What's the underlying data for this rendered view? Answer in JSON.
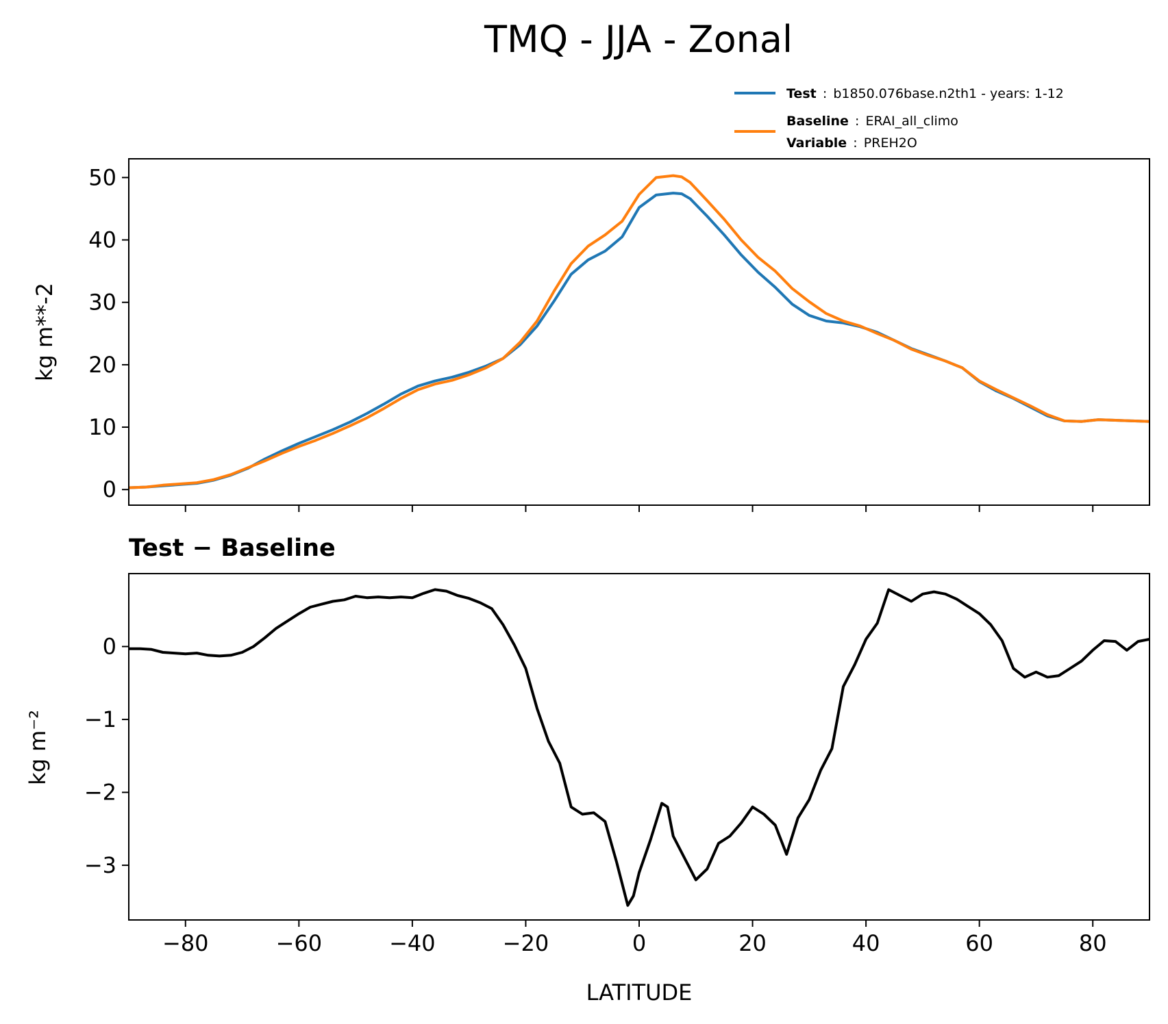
{
  "title": "TMQ - JJA - Zonal",
  "legend": {
    "test_label": "Test",
    "test_text": "b1850.076base.n2th1 - years: 1-12",
    "baseline_label": "Baseline",
    "baseline_text": "ERAI_all_climo",
    "variable_label": "Variable",
    "variable_text": "PREH2O",
    "colon": ":"
  },
  "colors": {
    "test": "#1f77b4",
    "baseline": "#ff7f0e",
    "diff": "#000000"
  },
  "chart_data": [
    {
      "type": "line",
      "title": "",
      "xlabel": "",
      "ylabel": "kg m**-2",
      "xlim": [
        -90,
        90
      ],
      "ylim": [
        -2.5,
        53
      ],
      "yticks": [
        0,
        10,
        20,
        30,
        40,
        50
      ],
      "ytick_labels": [
        "0",
        "10",
        "20",
        "30",
        "40",
        "50"
      ],
      "legend_position": "above-right",
      "series": [
        {
          "name": "Test",
          "color": "#1f77b4",
          "x": [
            -90,
            -87,
            -84,
            -81,
            -78,
            -75,
            -72,
            -69,
            -66,
            -63,
            -60,
            -57,
            -54,
            -51,
            -48,
            -45,
            -42,
            -39,
            -36,
            -33,
            -30,
            -27,
            -24,
            -21,
            -18,
            -15,
            -12,
            -9,
            -6,
            -3,
            0,
            3,
            6,
            7.5,
            9,
            12,
            15,
            18,
            21,
            24,
            27,
            30,
            33,
            36,
            39,
            42,
            45,
            48,
            51,
            54,
            57,
            60,
            63,
            66,
            69,
            72,
            75,
            78,
            81,
            84,
            87,
            90
          ],
          "y": [
            0.3,
            0.4,
            0.6,
            0.8,
            1.0,
            1.5,
            2.3,
            3.4,
            4.9,
            6.2,
            7.4,
            8.5,
            9.6,
            10.8,
            12.2,
            13.7,
            15.3,
            16.6,
            17.4,
            18.0,
            18.8,
            19.8,
            21.0,
            23.2,
            26.2,
            30.2,
            34.5,
            36.8,
            38.2,
            40.5,
            45.2,
            47.2,
            47.5,
            47.4,
            46.6,
            43.8,
            40.8,
            37.6,
            34.8,
            32.4,
            29.7,
            27.9,
            27.0,
            26.7,
            26.1,
            25.2,
            23.9,
            22.6,
            21.6,
            20.6,
            19.5,
            17.3,
            15.8,
            14.6,
            13.2,
            11.8,
            11.0,
            10.9,
            11.2,
            11.1,
            11.0,
            10.9
          ]
        },
        {
          "name": "Baseline",
          "color": "#ff7f0e",
          "x": [
            -90,
            -87,
            -84,
            -81,
            -78,
            -75,
            -72,
            -69,
            -66,
            -63,
            -60,
            -57,
            -54,
            -51,
            -48,
            -45,
            -42,
            -39,
            -36,
            -33,
            -30,
            -27,
            -24,
            -21,
            -18,
            -15,
            -12,
            -9,
            -6,
            -3,
            0,
            3,
            6,
            7.5,
            9,
            12,
            15,
            18,
            21,
            24,
            27,
            30,
            33,
            36,
            39,
            42,
            45,
            48,
            51,
            54,
            57,
            60,
            63,
            66,
            69,
            72,
            75,
            78,
            81,
            84,
            87,
            90
          ],
          "y": [
            0.3,
            0.4,
            0.7,
            0.9,
            1.1,
            1.6,
            2.4,
            3.5,
            4.6,
            5.8,
            6.9,
            7.9,
            9.0,
            10.2,
            11.5,
            13.0,
            14.6,
            16.0,
            16.9,
            17.5,
            18.4,
            19.5,
            21.0,
            23.6,
            27.0,
            31.8,
            36.2,
            39.0,
            40.8,
            43.0,
            47.3,
            50.0,
            50.3,
            50.1,
            49.2,
            46.3,
            43.3,
            40.0,
            37.2,
            35.0,
            32.2,
            30.1,
            28.2,
            27.0,
            26.2,
            25.0,
            23.9,
            22.5,
            21.5,
            20.6,
            19.5,
            17.4,
            16.0,
            14.7,
            13.4,
            12.0,
            11.0,
            10.9,
            11.2,
            11.1,
            11.0,
            10.9
          ]
        }
      ]
    },
    {
      "type": "line",
      "title": "Test − Baseline",
      "xlabel": "LATITUDE",
      "ylabel": "kg m⁻²",
      "xlim": [
        -90,
        90
      ],
      "ylim": [
        -3.75,
        1.0
      ],
      "yticks": [
        0,
        -1,
        -2,
        -3
      ],
      "ytick_labels": [
        "0",
        "−1",
        "−2",
        "−3"
      ],
      "xticks": [
        -80,
        -60,
        -40,
        -20,
        0,
        20,
        40,
        60,
        80
      ],
      "xtick_labels": [
        "−80",
        "−60",
        "−40",
        "−20",
        "0",
        "20",
        "40",
        "60",
        "80"
      ],
      "series": [
        {
          "name": "Test - Baseline",
          "color": "#000000",
          "x": [
            -90,
            -88,
            -86,
            -84,
            -82,
            -80,
            -78,
            -76,
            -74,
            -72,
            -70,
            -68,
            -66,
            -64,
            -62,
            -60,
            -58,
            -56,
            -54,
            -52,
            -50,
            -48,
            -46,
            -44,
            -42,
            -40,
            -38,
            -36,
            -34,
            -32,
            -30,
            -28,
            -26,
            -24,
            -22,
            -20,
            -18,
            -16,
            -14,
            -12,
            -10,
            -8,
            -6,
            -4,
            -2,
            -1,
            0,
            2,
            4,
            5,
            6,
            8,
            10,
            12,
            14,
            16,
            18,
            20,
            22,
            24,
            26,
            28,
            30,
            32,
            34,
            36,
            38,
            40,
            42,
            44,
            46,
            48,
            50,
            52,
            54,
            56,
            58,
            60,
            62,
            64,
            66,
            68,
            70,
            72,
            74,
            76,
            78,
            80,
            82,
            84,
            86,
            88,
            90
          ],
          "y": [
            -0.03,
            -0.03,
            -0.04,
            -0.08,
            -0.09,
            -0.1,
            -0.09,
            -0.12,
            -0.13,
            -0.12,
            -0.08,
            0.0,
            0.12,
            0.25,
            0.35,
            0.45,
            0.54,
            0.58,
            0.62,
            0.64,
            0.69,
            0.67,
            0.68,
            0.67,
            0.68,
            0.67,
            0.73,
            0.78,
            0.76,
            0.7,
            0.66,
            0.6,
            0.52,
            0.3,
            0.02,
            -0.3,
            -0.85,
            -1.3,
            -1.6,
            -2.2,
            -2.3,
            -2.28,
            -2.4,
            -2.95,
            -3.55,
            -3.42,
            -3.1,
            -2.65,
            -2.15,
            -2.2,
            -2.6,
            -2.9,
            -3.2,
            -3.05,
            -2.7,
            -2.6,
            -2.42,
            -2.2,
            -2.3,
            -2.45,
            -2.85,
            -2.35,
            -2.1,
            -1.7,
            -1.4,
            -0.55,
            -0.25,
            0.1,
            0.32,
            0.78,
            0.7,
            0.62,
            0.72,
            0.75,
            0.72,
            0.65,
            0.55,
            0.45,
            0.3,
            0.08,
            -0.3,
            -0.42,
            -0.35,
            -0.42,
            -0.4,
            -0.3,
            -0.2,
            -0.05,
            0.08,
            0.07,
            -0.05,
            0.07,
            0.1
          ]
        }
      ]
    }
  ]
}
